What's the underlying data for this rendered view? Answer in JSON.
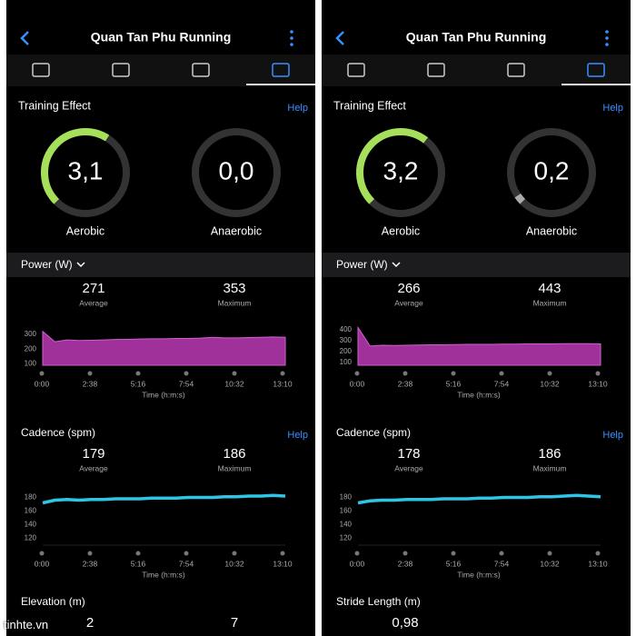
{
  "watermark": "tinhte.vn",
  "panels": [
    {
      "title": "Quan Tan Phu Running",
      "training_effect": {
        "label": "Training Effect",
        "help": "Help",
        "aerobic": {
          "value": 3.1,
          "label": "3,1",
          "name": "Aerobic"
        },
        "anaerobic": {
          "value": 0.0,
          "label": "0,0",
          "name": "Anaerobic"
        }
      },
      "power": {
        "label": "Power (W)",
        "average": "271",
        "average_label": "Average",
        "maximum": "353",
        "maximum_label": "Maximum",
        "chart": {
          "ylim": [
            90,
            380
          ],
          "yticks": [
            100,
            200,
            300
          ],
          "time_labels": [
            "0:00",
            "2:38",
            "5:16",
            "7:54",
            "10:32",
            "13:10"
          ],
          "x_label": "Time (h:m:s)",
          "values": [
            320,
            250,
            262,
            258,
            260,
            262,
            265,
            266,
            268,
            270,
            270,
            272,
            272,
            274,
            280,
            276,
            276,
            278,
            280,
            282,
            280
          ]
        }
      },
      "cadence": {
        "label": "Cadence (spm)",
        "help": "Help",
        "average": "179",
        "average_label": "Average",
        "maximum": "186",
        "maximum_label": "Maximum",
        "chart": {
          "ylim": [
            110,
            190
          ],
          "yticks": [
            120,
            140,
            160,
            180
          ],
          "time_labels": [
            "0:00",
            "2:38",
            "5:16",
            "7:54",
            "10:32",
            "13:10"
          ],
          "x_label": "Time (h:m:s)",
          "values": [
            172,
            176,
            177,
            176,
            177,
            177,
            178,
            178,
            178,
            179,
            179,
            179,
            180,
            180,
            180,
            181,
            181,
            182,
            182,
            183,
            182
          ]
        }
      },
      "bottom": {
        "label": "Elevation (m)",
        "values": [
          "2",
          "7"
        ]
      }
    },
    {
      "title": "Quan Tan Phu Running",
      "training_effect": {
        "label": "Training Effect",
        "help": "Help",
        "aerobic": {
          "value": 3.2,
          "label": "3,2",
          "name": "Aerobic"
        },
        "anaerobic": {
          "value": 0.2,
          "label": "0,2",
          "name": "Anaerobic"
        }
      },
      "power": {
        "label": "Power (W)",
        "average": "266",
        "average_label": "Average",
        "maximum": "443",
        "maximum_label": "Maximum",
        "chart": {
          "ylim": [
            75,
            465
          ],
          "yticks": [
            100,
            200,
            300,
            400
          ],
          "time_labels": [
            "0:00",
            "2:38",
            "5:16",
            "7:54",
            "10:32",
            "13:10"
          ],
          "x_label": "Time (h:m:s)",
          "values": [
            420,
            250,
            258,
            255,
            258,
            260,
            262,
            262,
            264,
            266,
            266,
            266,
            268,
            268,
            270,
            270,
            270,
            272,
            272,
            272,
            270
          ]
        }
      },
      "cadence": {
        "label": "Cadence (spm)",
        "help": "Help",
        "average": "178",
        "average_label": "Average",
        "maximum": "186",
        "maximum_label": "Maximum",
        "chart": {
          "ylim": [
            110,
            190
          ],
          "yticks": [
            120,
            140,
            160,
            180
          ],
          "time_labels": [
            "0:00",
            "2:38",
            "5:16",
            "7:54",
            "10:32",
            "13:10"
          ],
          "x_label": "Time (h:m:s)",
          "values": [
            172,
            175,
            176,
            176,
            177,
            177,
            177,
            178,
            178,
            178,
            179,
            179,
            180,
            180,
            180,
            181,
            181,
            182,
            183,
            182,
            181
          ]
        }
      },
      "bottom": {
        "label": "Stride Length (m)",
        "values": [
          "0,98"
        ]
      }
    }
  ]
}
